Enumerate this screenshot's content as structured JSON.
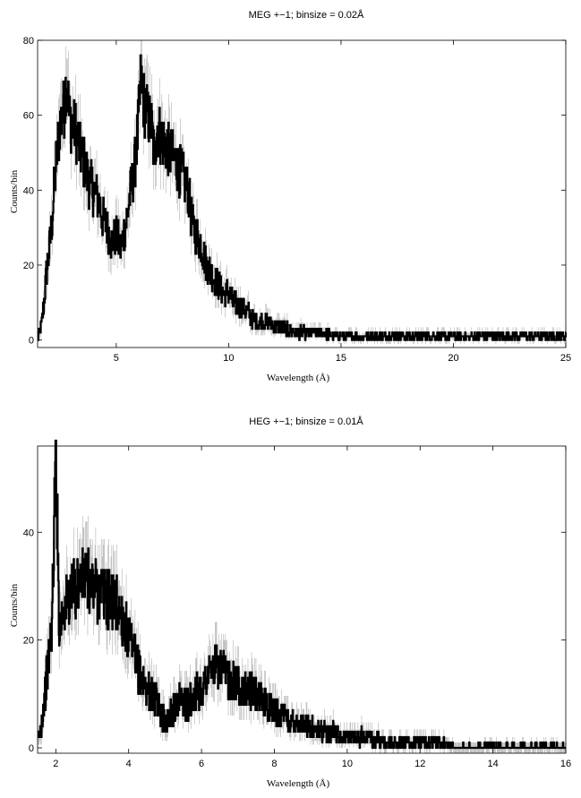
{
  "chart_data": [
    {
      "type": "line",
      "title": "MEG +−1; binsize = 0.02Å",
      "xlabel": "Wavelength (Å)",
      "ylabel": "Counts/bin",
      "xlim": [
        1.5,
        25
      ],
      "ylim": [
        -2,
        80
      ],
      "xticks": [
        5,
        10,
        15,
        20,
        25
      ],
      "yticks": [
        0,
        20,
        40,
        60,
        80
      ],
      "grid": false,
      "series": [
        {
          "style": "histogram with error bars",
          "color": "#000000",
          "errorbar_color": "#b0b0b0",
          "x": [
            1.5,
            1.7,
            1.9,
            2.1,
            2.3,
            2.5,
            2.7,
            2.8,
            2.9,
            3.0,
            3.2,
            3.4,
            3.6,
            3.8,
            4.0,
            4.2,
            4.4,
            4.6,
            4.8,
            5.0,
            5.2,
            5.4,
            5.6,
            5.8,
            6.0,
            6.1,
            6.2,
            6.4,
            6.6,
            6.7,
            6.8,
            7.0,
            7.2,
            7.4,
            7.6,
            7.8,
            8.0,
            8.2,
            8.4,
            8.6,
            8.8,
            9.0,
            9.2,
            9.4,
            9.6,
            9.8,
            10.0,
            10.2,
            10.5,
            10.8,
            11.0,
            11.3,
            11.6,
            12.0,
            12.5,
            13.0,
            13.5,
            14.0,
            15.0,
            16.0,
            17.0,
            18.0,
            19.0,
            20.0,
            21.0,
            22.0,
            23.0,
            24.0,
            25.0
          ],
          "y": [
            0,
            5,
            18,
            28,
            45,
            58,
            62,
            72,
            60,
            58,
            56,
            50,
            47,
            42,
            40,
            38,
            32,
            30,
            26,
            28,
            24,
            30,
            38,
            45,
            58,
            70,
            64,
            60,
            56,
            48,
            58,
            54,
            52,
            50,
            48,
            45,
            43,
            40,
            30,
            28,
            25,
            20,
            18,
            16,
            14,
            12,
            13,
            10,
            9,
            8,
            6,
            5,
            5,
            4,
            3,
            2,
            2,
            2,
            1,
            1,
            1,
            1,
            1,
            1,
            1,
            1,
            1,
            1,
            1
          ]
        }
      ]
    },
    {
      "type": "line",
      "title": "HEG +−1; binsize = 0.01Å",
      "xlabel": "Wavelength (Å)",
      "ylabel": "Counts/bin",
      "xlim": [
        1.5,
        16
      ],
      "ylim": [
        -1,
        56
      ],
      "xticks": [
        2,
        4,
        6,
        8,
        10,
        12,
        14,
        16
      ],
      "yticks": [
        0,
        20,
        40
      ],
      "grid": false,
      "series": [
        {
          "style": "histogram with error bars",
          "color": "#000000",
          "errorbar_color": "#b0b0b0",
          "x": [
            1.5,
            1.6,
            1.7,
            1.8,
            1.9,
            2.0,
            2.1,
            2.2,
            2.4,
            2.6,
            2.8,
            3.0,
            3.2,
            3.4,
            3.6,
            3.8,
            4.0,
            4.2,
            4.4,
            4.6,
            4.8,
            5.0,
            5.2,
            5.4,
            5.6,
            5.8,
            6.0,
            6.2,
            6.4,
            6.6,
            6.8,
            7.0,
            7.2,
            7.4,
            7.6,
            7.8,
            8.0,
            8.2,
            8.4,
            8.6,
            8.8,
            9.0,
            9.2,
            9.4,
            9.6,
            9.8,
            10.0,
            10.3,
            10.6,
            11.0,
            11.5,
            12.0,
            12.5,
            13.0,
            14.0,
            15.0,
            16.0
          ],
          "y": [
            1,
            4,
            10,
            16,
            24,
            55,
            22,
            26,
            28,
            30,
            32,
            30,
            29,
            28,
            27,
            25,
            20,
            16,
            12,
            10,
            8,
            5,
            7,
            9,
            8,
            10,
            11,
            14,
            15,
            14,
            13,
            12,
            11,
            10,
            9,
            8,
            7,
            6,
            5,
            5,
            4,
            4,
            3,
            3,
            3,
            2,
            2,
            2,
            2,
            1,
            1,
            1,
            1,
            0,
            0,
            0,
            0
          ]
        }
      ]
    }
  ]
}
